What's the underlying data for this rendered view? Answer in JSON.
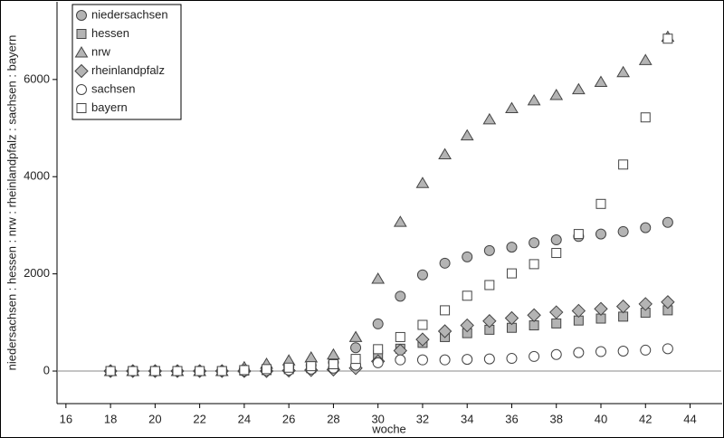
{
  "chart_data": {
    "type": "scatter",
    "x_label": "woche",
    "y_label": "niedersachsen : hessen : nrw : rheinlandpfalz : sachsen : bayern",
    "x": [
      18,
      19,
      20,
      21,
      22,
      23,
      24,
      25,
      26,
      27,
      28,
      29,
      30,
      31,
      32,
      33,
      34,
      35,
      36,
      37,
      38,
      39,
      40,
      41,
      42,
      43
    ],
    "xlim": [
      15.6,
      45.4
    ],
    "xticks": [
      16,
      18,
      20,
      22,
      24,
      26,
      28,
      30,
      32,
      34,
      36,
      38,
      40,
      42,
      44
    ],
    "ylim": [
      -670,
      7580
    ],
    "yticks": [
      0,
      2000,
      4000,
      6000
    ],
    "legend": "top-left",
    "series": [
      {
        "name": "niedersachsen",
        "marker": "circle",
        "color": "#b4b4b4",
        "values": [
          0,
          0,
          0,
          0,
          0,
          0,
          30,
          60,
          90,
          120,
          180,
          480,
          970,
          1540,
          1980,
          2220,
          2350,
          2480,
          2550,
          2640,
          2700,
          2770,
          2820,
          2870,
          2950,
          3060
        ]
      },
      {
        "name": "hessen",
        "marker": "square",
        "color": "#b4b4b4",
        "values": [
          0,
          0,
          0,
          0,
          0,
          0,
          10,
          20,
          40,
          60,
          90,
          200,
          330,
          460,
          580,
          700,
          780,
          850,
          890,
          940,
          980,
          1040,
          1080,
          1120,
          1200,
          1250
        ]
      },
      {
        "name": "nrw",
        "marker": "triangle",
        "color": "#b4b4b4",
        "values": [
          0,
          0,
          0,
          0,
          0,
          0,
          80,
          150,
          220,
          280,
          340,
          700,
          1900,
          3070,
          3870,
          4460,
          4850,
          5180,
          5410,
          5570,
          5680,
          5800,
          5950,
          6150,
          6400,
          6880
        ]
      },
      {
        "name": "rheinlandpfalz",
        "marker": "diamond",
        "color": "#b4b4b4",
        "values": [
          0,
          0,
          0,
          0,
          0,
          0,
          0,
          0,
          10,
          20,
          30,
          60,
          200,
          420,
          650,
          820,
          940,
          1030,
          1090,
          1150,
          1210,
          1240,
          1280,
          1330,
          1380,
          1420
        ]
      },
      {
        "name": "sachsen",
        "marker": "circle",
        "color": "#ffffff",
        "values": [
          0,
          0,
          0,
          0,
          0,
          0,
          0,
          10,
          20,
          40,
          60,
          120,
          170,
          230,
          230,
          230,
          240,
          250,
          260,
          300,
          340,
          380,
          400,
          410,
          430,
          460
        ]
      },
      {
        "name": "bayern",
        "marker": "square",
        "color": "#ffffff",
        "values": [
          0,
          0,
          0,
          0,
          0,
          0,
          20,
          40,
          70,
          100,
          140,
          250,
          450,
          700,
          950,
          1250,
          1550,
          1770,
          2010,
          2200,
          2430,
          2820,
          3440,
          4250,
          5220,
          6840
        ]
      }
    ]
  }
}
